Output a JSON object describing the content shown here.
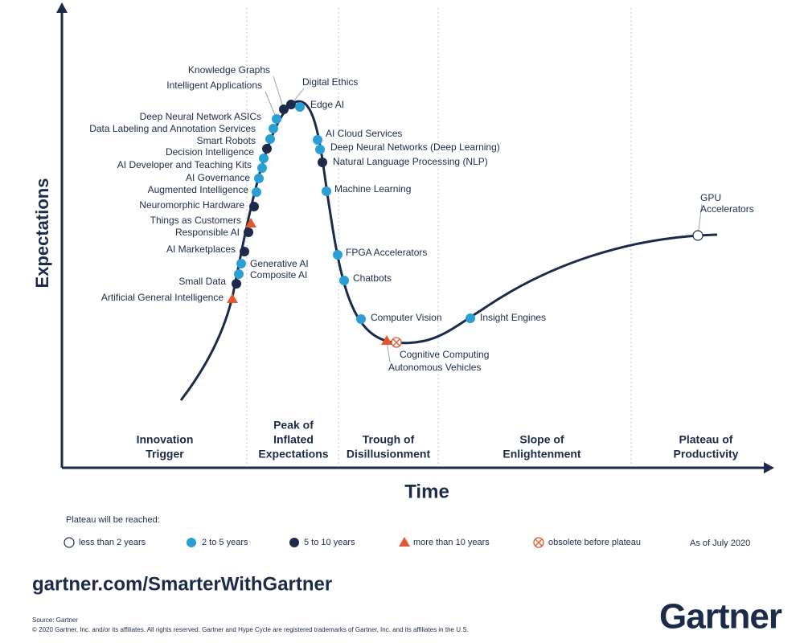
{
  "title_axes": {
    "y_label": "Expectations",
    "x_label": "Time"
  },
  "phases": [
    [
      "Innovation",
      "Trigger"
    ],
    [
      "Peak of",
      "Inflated",
      "Expectations"
    ],
    [
      "Trough of",
      "Disillusionment"
    ],
    [
      "Slope of",
      "Enlightenment"
    ],
    [
      "Plateau of",
      "Productivity"
    ]
  ],
  "technologies": [
    {
      "name": "Knowledge Graphs",
      "status": 2
    },
    {
      "name": "Intelligent Applications",
      "status": 1
    },
    {
      "name": "Deep Neural Network ASICs",
      "status": 1
    },
    {
      "name": "Data Labeling and Annotation Services",
      "status": 1
    },
    {
      "name": "Smart Robots",
      "status": 2
    },
    {
      "name": "Decision Intelligence",
      "status": 1
    },
    {
      "name": "AI Developer and Teaching Kits",
      "status": 1
    },
    {
      "name": "AI Governance",
      "status": 1
    },
    {
      "name": "Augmented Intelligence",
      "status": 1
    },
    {
      "name": "Neuromorphic Hardware",
      "status": 2
    },
    {
      "name": "Things as Customers",
      "status": 3
    },
    {
      "name": "Responsible AI",
      "status": 2
    },
    {
      "name": "AI Marketplaces",
      "status": 2
    },
    {
      "name": "Generative AI",
      "status": 1
    },
    {
      "name": "Composite AI",
      "status": 1
    },
    {
      "name": "Small Data",
      "status": 2
    },
    {
      "name": "Artificial General Intelligence",
      "status": 3
    },
    {
      "name": "Digital Ethics",
      "status": 2
    },
    {
      "name": "Edge AI",
      "status": 1
    },
    {
      "name": "AI Cloud Services",
      "status": 1
    },
    {
      "name": "Deep Neural Networks (Deep Learning)",
      "status": 1
    },
    {
      "name": "Natural Language Processing (NLP)",
      "status": 2
    },
    {
      "name": "Machine Learning",
      "status": 1
    },
    {
      "name": "FPGA Accelerators",
      "status": 1
    },
    {
      "name": "Chatbots",
      "status": 1
    },
    {
      "name": "Computer Vision",
      "status": 1
    },
    {
      "name": "Autonomous Vehicles",
      "status": 3
    },
    {
      "name": "Cognitive Computing",
      "status": 4
    },
    {
      "name": "Insight Engines",
      "status": 1
    },
    {
      "name": [
        "GPU",
        "Accelerators"
      ],
      "status": 0
    }
  ],
  "legend": {
    "title": "Plateau will be reached:",
    "items": [
      "less than 2 years",
      "2 to 5 years",
      "5 to 10 years",
      "more than 10 years",
      "obsolete before plateau"
    ],
    "as_of": "As of July 2020"
  },
  "footer": {
    "url": "gartner.com/SmarterWithGartner",
    "source": "Source: Gartner",
    "copyright": "© 2020 Gartner, Inc. and/or its affiliates. All rights reserved. Gartner and Hype Cycle are registered trademarks of Gartner, Inc. and its affiliates in the U.S.",
    "logo": "Gartner"
  }
}
